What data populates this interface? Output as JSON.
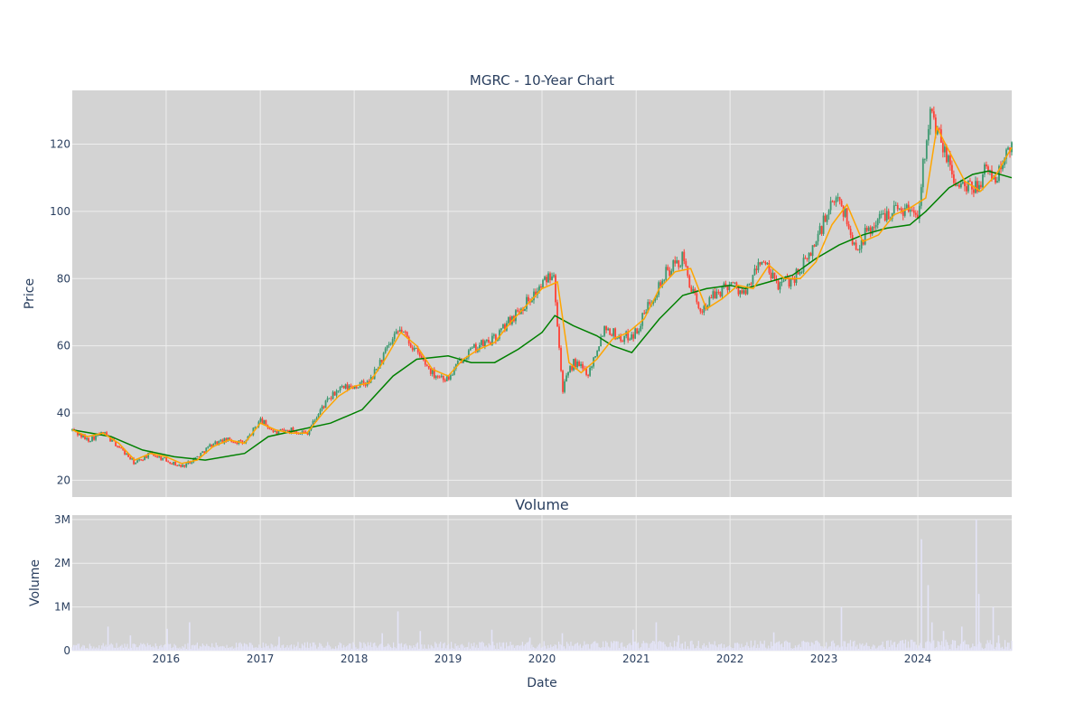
{
  "chart_data": {
    "type": "candlestick",
    "title": "MGRC - 10-Year Chart",
    "price_panel": {
      "ylabel": "Price",
      "ylim": [
        15,
        136
      ],
      "yticks": [
        20,
        40,
        60,
        80,
        100,
        120
      ],
      "up_color": "#3d9970",
      "down_color": "#ff4136",
      "ma_short_color": "#ffa500",
      "ma_long_color": "#008000",
      "close_approx": {
        "x": [
          "2015-01-01",
          "2015-03-01",
          "2015-05-01",
          "2015-07-01",
          "2015-09-01",
          "2015-11-01",
          "2016-01-01",
          "2016-03-01",
          "2016-05-01",
          "2016-07-01",
          "2016-09-01",
          "2016-11-01",
          "2017-01-01",
          "2017-03-01",
          "2017-05-01",
          "2017-07-01",
          "2017-09-01",
          "2017-11-01",
          "2018-01-01",
          "2018-03-01",
          "2018-05-01",
          "2018-07-01",
          "2018-09-01",
          "2018-11-01",
          "2019-01-01",
          "2019-03-01",
          "2019-05-01",
          "2019-07-01",
          "2019-09-01",
          "2019-11-01",
          "2020-01-01",
          "2020-02-15",
          "2020-03-20",
          "2020-05-01",
          "2020-07-01",
          "2020-09-01",
          "2020-11-01",
          "2021-01-01",
          "2021-03-01",
          "2021-05-01",
          "2021-07-01",
          "2021-09-01",
          "2021-11-01",
          "2022-01-01",
          "2022-03-01",
          "2022-05-01",
          "2022-07-01",
          "2022-09-01",
          "2022-11-01",
          "2023-01-01",
          "2023-03-01",
          "2023-05-01",
          "2023-07-01",
          "2023-09-01",
          "2023-11-01",
          "2024-01-01",
          "2024-02-15",
          "2024-04-01",
          "2024-06-01",
          "2024-08-01",
          "2024-09-20",
          "2024-11-01",
          "2024-12-31"
        ],
        "y": [
          35,
          32,
          34,
          30,
          25,
          28,
          26,
          24,
          27,
          31,
          32,
          31,
          38,
          34,
          35,
          34,
          42,
          47,
          48,
          49,
          58,
          65,
          58,
          52,
          50,
          57,
          60,
          62,
          68,
          73,
          78,
          83,
          47,
          55,
          52,
          66,
          62,
          64,
          74,
          82,
          86,
          70,
          75,
          79,
          75,
          86,
          78,
          80,
          86,
          97,
          105,
          89,
          95,
          100,
          101,
          100,
          130,
          120,
          108,
          106,
          112,
          110,
          120
        ]
      },
      "ma_short": {
        "x": [
          "2015-01-01",
          "2015-03-01",
          "2015-05-01",
          "2015-07-01",
          "2015-09-01",
          "2015-11-01",
          "2016-01-01",
          "2016-03-01",
          "2016-05-01",
          "2016-07-01",
          "2016-09-01",
          "2016-11-01",
          "2017-01-01",
          "2017-03-01",
          "2017-05-01",
          "2017-07-01",
          "2017-09-01",
          "2017-11-01",
          "2018-01-01",
          "2018-03-01",
          "2018-05-01",
          "2018-07-01",
          "2018-09-01",
          "2018-11-01",
          "2019-01-01",
          "2019-03-01",
          "2019-05-01",
          "2019-07-01",
          "2019-09-01",
          "2019-11-01",
          "2020-01-01",
          "2020-03-01",
          "2020-04-15",
          "2020-06-01",
          "2020-08-01",
          "2020-10-01",
          "2020-12-01",
          "2021-02-01",
          "2021-04-01",
          "2021-06-01",
          "2021-08-01",
          "2021-10-01",
          "2021-12-01",
          "2022-02-01",
          "2022-04-01",
          "2022-06-01",
          "2022-08-01",
          "2022-10-01",
          "2022-12-01",
          "2023-02-01",
          "2023-04-01",
          "2023-06-01",
          "2023-08-01",
          "2023-10-01",
          "2023-12-01",
          "2024-02-01",
          "2024-03-15",
          "2024-05-01",
          "2024-07-01",
          "2024-09-01",
          "2024-11-01",
          "2024-12-31"
        ],
        "y": [
          35,
          33,
          34,
          31,
          26,
          28,
          27,
          25,
          26,
          30,
          32,
          31,
          37,
          35,
          34,
          34,
          40,
          45,
          48,
          49,
          56,
          64,
          60,
          53,
          51,
          56,
          59,
          61,
          67,
          72,
          77,
          79,
          55,
          52,
          56,
          62,
          64,
          68,
          77,
          82,
          83,
          71,
          74,
          78,
          77,
          84,
          80,
          80,
          85,
          96,
          102,
          91,
          93,
          99,
          101,
          104,
          125,
          118,
          109,
          106,
          111,
          119
        ]
      },
      "ma_long": {
        "x": [
          "2015-01-01",
          "2015-06-01",
          "2015-10-01",
          "2016-02-01",
          "2016-06-01",
          "2016-11-01",
          "2017-02-01",
          "2017-06-01",
          "2017-10-01",
          "2018-02-01",
          "2018-06-01",
          "2018-09-01",
          "2019-01-01",
          "2019-04-01",
          "2019-07-01",
          "2019-10-01",
          "2020-01-01",
          "2020-02-20",
          "2020-05-01",
          "2020-08-01",
          "2020-10-01",
          "2020-12-15",
          "2021-04-01",
          "2021-07-01",
          "2021-10-01",
          "2022-01-01",
          "2022-03-01",
          "2022-06-01",
          "2022-09-01",
          "2022-12-01",
          "2023-03-01",
          "2023-06-01",
          "2023-09-01",
          "2023-12-01",
          "2024-02-01",
          "2024-05-01",
          "2024-08-01",
          "2024-10-01",
          "2024-12-31"
        ],
        "y": [
          35,
          33,
          29,
          27,
          26,
          28,
          33,
          35,
          37,
          41,
          51,
          56,
          57,
          55,
          55,
          59,
          64,
          69,
          66,
          63,
          60,
          58,
          68,
          75,
          77,
          78,
          77,
          79,
          81,
          86,
          90,
          93,
          95,
          96,
          100,
          107,
          111,
          112,
          110
        ]
      }
    },
    "volume_panel": {
      "title": "Volume",
      "ylabel": "Volume",
      "ylim": [
        0,
        3100000
      ],
      "yticks": [
        0,
        1000000,
        2000000,
        3000000
      ],
      "ytick_labels": [
        "0",
        "1M",
        "2M",
        "3M"
      ],
      "bar_color": "#e4e4f8",
      "spikes": [
        {
          "x": "2015-05-20",
          "v": 550000
        },
        {
          "x": "2015-08-15",
          "v": 350000
        },
        {
          "x": "2016-01-05",
          "v": 500000
        },
        {
          "x": "2016-04-01",
          "v": 650000
        },
        {
          "x": "2017-03-15",
          "v": 320000
        },
        {
          "x": "2018-04-20",
          "v": 400000
        },
        {
          "x": "2018-06-20",
          "v": 900000
        },
        {
          "x": "2018-09-15",
          "v": 450000
        },
        {
          "x": "2019-06-20",
          "v": 480000
        },
        {
          "x": "2019-11-15",
          "v": 300000
        },
        {
          "x": "2020-03-20",
          "v": 400000
        },
        {
          "x": "2020-12-20",
          "v": 480000
        },
        {
          "x": "2021-03-20",
          "v": 650000
        },
        {
          "x": "2021-06-15",
          "v": 350000
        },
        {
          "x": "2022-06-20",
          "v": 420000
        },
        {
          "x": "2023-03-10",
          "v": 1000000
        },
        {
          "x": "2024-01-15",
          "v": 2550000
        },
        {
          "x": "2024-02-10",
          "v": 1500000
        },
        {
          "x": "2024-02-25",
          "v": 650000
        },
        {
          "x": "2024-04-10",
          "v": 450000
        },
        {
          "x": "2024-06-20",
          "v": 550000
        },
        {
          "x": "2024-08-15",
          "v": 3000000
        },
        {
          "x": "2024-08-25",
          "v": 1300000
        },
        {
          "x": "2024-10-20",
          "v": 1000000
        },
        {
          "x": "2024-11-10",
          "v": 350000
        }
      ]
    },
    "xaxis": {
      "label": "Date",
      "range": [
        "2015-01-01",
        "2024-12-31"
      ],
      "ticks": [
        "2016-01-01",
        "2017-01-01",
        "2018-01-01",
        "2019-01-01",
        "2020-01-01",
        "2021-01-01",
        "2022-01-01",
        "2023-01-01",
        "2024-01-01"
      ],
      "tick_labels": [
        "2016",
        "2017",
        "2018",
        "2019",
        "2020",
        "2021",
        "2022",
        "2023",
        "2024"
      ]
    },
    "grid": true,
    "plot_bgcolor": "#d3d3d3"
  }
}
